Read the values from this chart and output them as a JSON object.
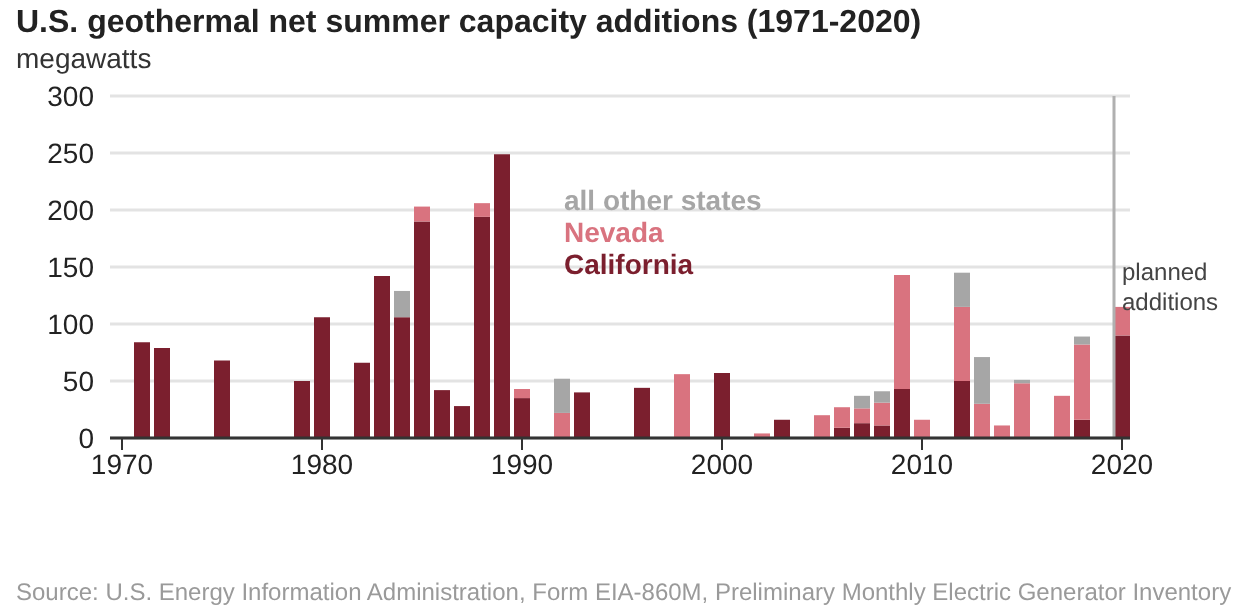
{
  "chart_data": {
    "type": "bar",
    "title": "U.S. geothermal net summer capacity additions (1971-2020)",
    "ylabel": "megawatts",
    "stacked": true,
    "x": [
      1971,
      1972,
      1975,
      1979,
      1980,
      1982,
      1983,
      1984,
      1985,
      1986,
      1987,
      1988,
      1989,
      1990,
      1992,
      1993,
      1996,
      1998,
      2000,
      2002,
      2003,
      2005,
      2006,
      2007,
      2008,
      2009,
      2010,
      2012,
      2013,
      2014,
      2015,
      2017,
      2018,
      2020
    ],
    "series": [
      {
        "name": "California",
        "color": "#7b1f2e",
        "values": [
          84,
          79,
          68,
          50,
          106,
          66,
          142,
          106,
          190,
          42,
          28,
          194,
          249,
          35,
          null,
          40,
          44,
          null,
          57,
          null,
          16,
          null,
          9,
          13,
          11,
          43,
          null,
          50,
          null,
          null,
          null,
          null,
          16,
          90
        ]
      },
      {
        "name": "Nevada",
        "color": "#d9737f",
        "values": [
          null,
          null,
          null,
          null,
          null,
          null,
          null,
          null,
          13,
          null,
          null,
          12,
          null,
          8,
          22,
          null,
          null,
          56,
          null,
          4,
          null,
          20,
          18,
          13,
          20,
          100,
          16,
          65,
          30,
          11,
          48,
          37,
          66,
          25
        ]
      },
      {
        "name": "all other states",
        "color": "#a6a6a6",
        "values": [
          null,
          null,
          null,
          null,
          null,
          null,
          null,
          23,
          null,
          null,
          null,
          null,
          null,
          null,
          30,
          null,
          null,
          null,
          null,
          null,
          null,
          null,
          null,
          11,
          10,
          null,
          null,
          30,
          41,
          null,
          3,
          null,
          7,
          null
        ]
      }
    ],
    "xlim": [
      1969.4,
      2020.4
    ],
    "xticks": [
      1970,
      1980,
      1990,
      2000,
      2010,
      2020
    ],
    "ylim": [
      0,
      300
    ],
    "yticks": [
      0,
      50,
      100,
      150,
      200,
      250,
      300
    ],
    "grid": "y",
    "legend": "top",
    "ref_lines": [
      {
        "axis": "x",
        "value": 2019.6,
        "label": "planned additions",
        "color": "#b0b0b0"
      }
    ],
    "annotations": [
      "Source: U.S. Energy Information Administration, Form EIA-860M, Preliminary Monthly Electric Generator Inventory"
    ]
  }
}
